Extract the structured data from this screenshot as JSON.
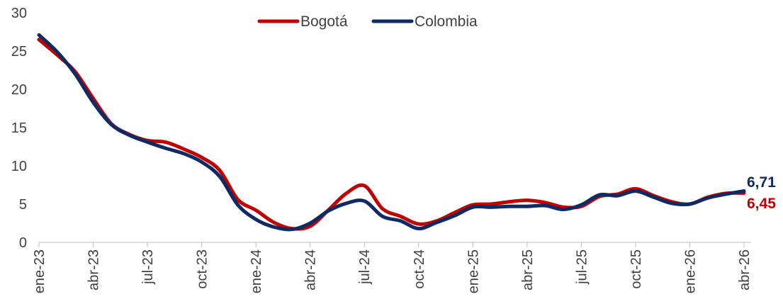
{
  "chart_data": {
    "type": "line",
    "title": "",
    "xlabel": "",
    "ylabel": "",
    "ylim": [
      0,
      30
    ],
    "yticks": [
      "0",
      "5",
      "10",
      "15",
      "20",
      "25",
      "30"
    ],
    "ytick_values": [
      0,
      5,
      10,
      15,
      20,
      25,
      30
    ],
    "x": [
      "ene-23",
      "feb-23",
      "mar-23",
      "abr-23",
      "may-23",
      "jun-23",
      "jul-23",
      "ago-23",
      "sep-23",
      "oct-23",
      "nov-23",
      "dic-23",
      "ene-24",
      "feb-24",
      "mar-24",
      "abr-24",
      "may-24",
      "jun-24",
      "jul-24",
      "ago-24",
      "sep-24",
      "oct-24",
      "nov-24",
      "dic-24",
      "ene-25",
      "feb-25",
      "mar-25",
      "abr-25",
      "may-25",
      "jun-25",
      "jul-25",
      "ago-25",
      "sep-25",
      "oct-25",
      "nov-25",
      "dic-25",
      "ene-26",
      "feb-26",
      "mar-26",
      "abr-26"
    ],
    "xticks": [
      "ene-23",
      "abr-23",
      "jul-23",
      "oct-23",
      "ene-24",
      "abr-24",
      "jul-24",
      "oct-24",
      "ene-25",
      "abr-25",
      "jul-25",
      "oct-25",
      "ene-26",
      "abr-26"
    ],
    "legend_position": "top-center",
    "grid": false,
    "series": [
      {
        "name": "Bogotá",
        "color": "#C00000",
        "values": [
          26.5,
          24.5,
          22.3,
          18.8,
          15.5,
          14.1,
          13.3,
          13.1,
          12.2,
          11.1,
          9.4,
          5.6,
          4.2,
          2.6,
          1.8,
          2.1,
          4.2,
          6.4,
          7.4,
          4.4,
          3.4,
          2.4,
          2.8,
          3.9,
          4.9,
          5.0,
          5.3,
          5.5,
          5.2,
          4.6,
          4.7,
          6.0,
          6.3,
          7.0,
          6.1,
          5.3,
          5.0,
          5.9,
          6.4,
          6.45
        ],
        "end_label": "6,45"
      },
      {
        "name": "Colombia",
        "color": "#0F2A61",
        "values": [
          27.1,
          24.9,
          22.0,
          18.3,
          15.4,
          14.0,
          13.1,
          12.3,
          11.6,
          10.5,
          8.6,
          4.9,
          3.0,
          2.0,
          1.7,
          2.5,
          4.1,
          5.1,
          5.4,
          3.4,
          2.8,
          1.8,
          2.6,
          3.5,
          4.6,
          4.6,
          4.7,
          4.7,
          4.8,
          4.3,
          4.9,
          6.2,
          6.1,
          6.7,
          5.9,
          5.1,
          5.0,
          5.8,
          6.3,
          6.71
        ],
        "end_label": "6,71"
      }
    ]
  }
}
